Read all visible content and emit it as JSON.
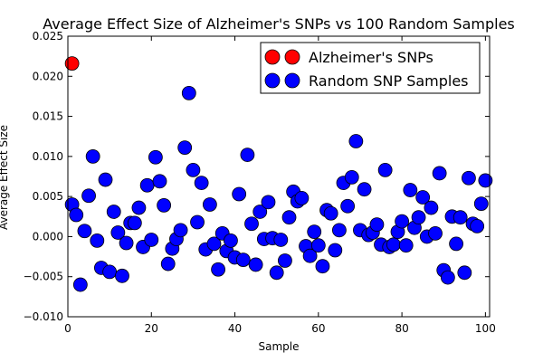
{
  "chart_data": {
    "type": "scatter",
    "title": "Average Effect Size of Alzheimer's SNPs vs 100 Random Samples",
    "xlabel": "Sample",
    "ylabel": "Average Effect Size",
    "xlim": [
      0,
      101
    ],
    "ylim": [
      -0.01,
      0.025
    ],
    "xticks": [
      0,
      20,
      40,
      60,
      80,
      100
    ],
    "yticks": [
      -0.01,
      -0.005,
      0.0,
      0.005,
      0.01,
      0.015,
      0.02,
      0.025
    ],
    "ytick_labels": [
      "−0.010",
      "−0.005",
      "0.000",
      "0.005",
      "0.010",
      "0.015",
      "0.020",
      "0.025"
    ],
    "legend_position": "top-right",
    "series": [
      {
        "name": "Alzheimer's SNPs",
        "color": "#ff0000",
        "points": [
          [
            1,
            0.0216
          ]
        ]
      },
      {
        "name": "Random SNP Samples",
        "color": "#0000ff",
        "points": [
          [
            1,
            0.004
          ],
          [
            2,
            0.0027
          ],
          [
            3,
            -0.006
          ],
          [
            4,
            0.0007
          ],
          [
            5,
            0.0051
          ],
          [
            6,
            0.01
          ],
          [
            7,
            -0.0005
          ],
          [
            8,
            -0.0039
          ],
          [
            9,
            0.0071
          ],
          [
            10,
            -0.0044
          ],
          [
            11,
            0.0031
          ],
          [
            12,
            0.0005
          ],
          [
            13,
            -0.0049
          ],
          [
            14,
            -0.0008
          ],
          [
            15,
            0.0017
          ],
          [
            16,
            0.0017
          ],
          [
            17,
            0.0036
          ],
          [
            18,
            -0.0013
          ],
          [
            19,
            0.0064
          ],
          [
            20,
            -0.0004
          ],
          [
            21,
            0.0099
          ],
          [
            22,
            0.0069
          ],
          [
            23,
            0.0039
          ],
          [
            24,
            -0.0034
          ],
          [
            25,
            -0.0015
          ],
          [
            26,
            -0.0003
          ],
          [
            27,
            0.0008
          ],
          [
            28,
            0.0111
          ],
          [
            29,
            0.0179
          ],
          [
            30,
            0.0083
          ],
          [
            31,
            0.0018
          ],
          [
            32,
            0.0067
          ],
          [
            33,
            -0.0016
          ],
          [
            34,
            0.004
          ],
          [
            35,
            -0.0009
          ],
          [
            36,
            -0.0041
          ],
          [
            37,
            0.0004
          ],
          [
            38,
            -0.0018
          ],
          [
            39,
            -0.0005
          ],
          [
            40,
            -0.0026
          ],
          [
            41,
            0.0053
          ],
          [
            42,
            -0.0029
          ],
          [
            43,
            0.0102
          ],
          [
            44,
            0.0016
          ],
          [
            45,
            -0.0035
          ],
          [
            46,
            0.0031
          ],
          [
            47,
            -0.0003
          ],
          [
            48,
            0.0043
          ],
          [
            49,
            -0.0002
          ],
          [
            50,
            -0.0045
          ],
          [
            51,
            -0.0004
          ],
          [
            52,
            -0.003
          ],
          [
            53,
            0.0024
          ],
          [
            54,
            0.0056
          ],
          [
            55,
            0.0044
          ],
          [
            56,
            0.0048
          ],
          [
            57,
            -0.0012
          ],
          [
            58,
            -0.0024
          ],
          [
            59,
            0.0006
          ],
          [
            60,
            -0.0011
          ],
          [
            61,
            -0.0037
          ],
          [
            62,
            0.0033
          ],
          [
            63,
            0.0029
          ],
          [
            64,
            -0.0017
          ],
          [
            65,
            0.0008
          ],
          [
            66,
            0.0067
          ],
          [
            67,
            0.0038
          ],
          [
            68,
            0.0074
          ],
          [
            69,
            0.0119
          ],
          [
            70,
            0.0008
          ],
          [
            71,
            0.0059
          ],
          [
            72,
            0.0002
          ],
          [
            73,
            0.0005
          ],
          [
            74,
            0.0015
          ],
          [
            75,
            -0.001
          ],
          [
            76,
            0.0083
          ],
          [
            77,
            -0.0013
          ],
          [
            78,
            -0.001
          ],
          [
            79,
            0.0006
          ],
          [
            80,
            0.0019
          ],
          [
            81,
            -0.0011
          ],
          [
            82,
            0.0058
          ],
          [
            83,
            0.0011
          ],
          [
            84,
            0.0024
          ],
          [
            85,
            0.0049
          ],
          [
            86,
            0.0
          ],
          [
            87,
            0.0036
          ],
          [
            88,
            0.0004
          ],
          [
            89,
            0.0079
          ],
          [
            90,
            -0.0042
          ],
          [
            91,
            -0.0051
          ],
          [
            92,
            0.0025
          ],
          [
            93,
            -0.0009
          ],
          [
            94,
            0.0024
          ],
          [
            95,
            -0.0045
          ],
          [
            96,
            0.0073
          ],
          [
            97,
            0.0016
          ],
          [
            98,
            0.0013
          ],
          [
            99,
            0.0041
          ],
          [
            100,
            0.007
          ]
        ]
      }
    ]
  }
}
